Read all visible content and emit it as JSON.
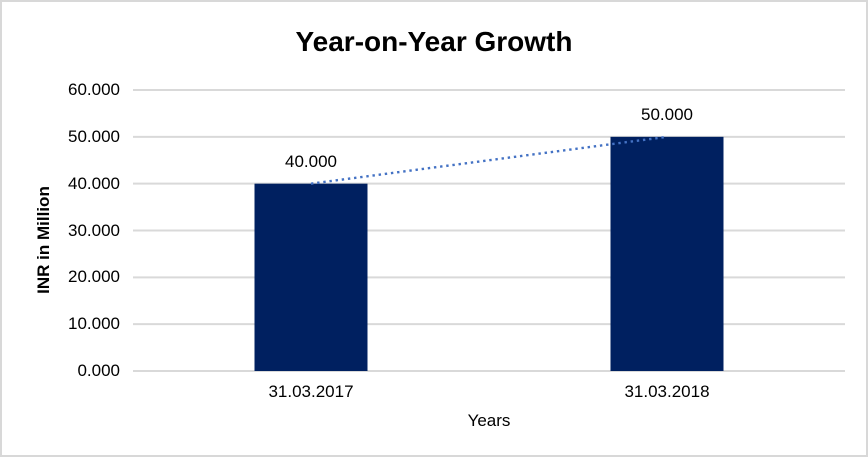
{
  "window": {
    "title": "Year-on-Year Growth"
  },
  "chart_data": {
    "type": "bar",
    "title": "Year-on-Year Growth",
    "xlabel": "Years",
    "ylabel": "INR in Million",
    "categories": [
      "31.03.2017",
      "31.03.2018"
    ],
    "values": [
      40000,
      50000
    ],
    "data_labels": [
      "40.000",
      "50.000"
    ],
    "ylim": [
      0,
      60000
    ],
    "ytick_interval": 10000,
    "ytick_labels": [
      "0.000",
      "10.000",
      "20.000",
      "30.000",
      "40.000",
      "50.000",
      "60.000"
    ],
    "grid": true,
    "legend": false,
    "bar_color": "#002060",
    "gridline_color": "#D9D9D9",
    "trendline": {
      "style": "dotted",
      "color": "#4472C4",
      "from": [
        0,
        40000
      ],
      "to": [
        1,
        50000
      ]
    },
    "background": "#FFFFFF",
    "border_color": "#D8D8D8"
  }
}
